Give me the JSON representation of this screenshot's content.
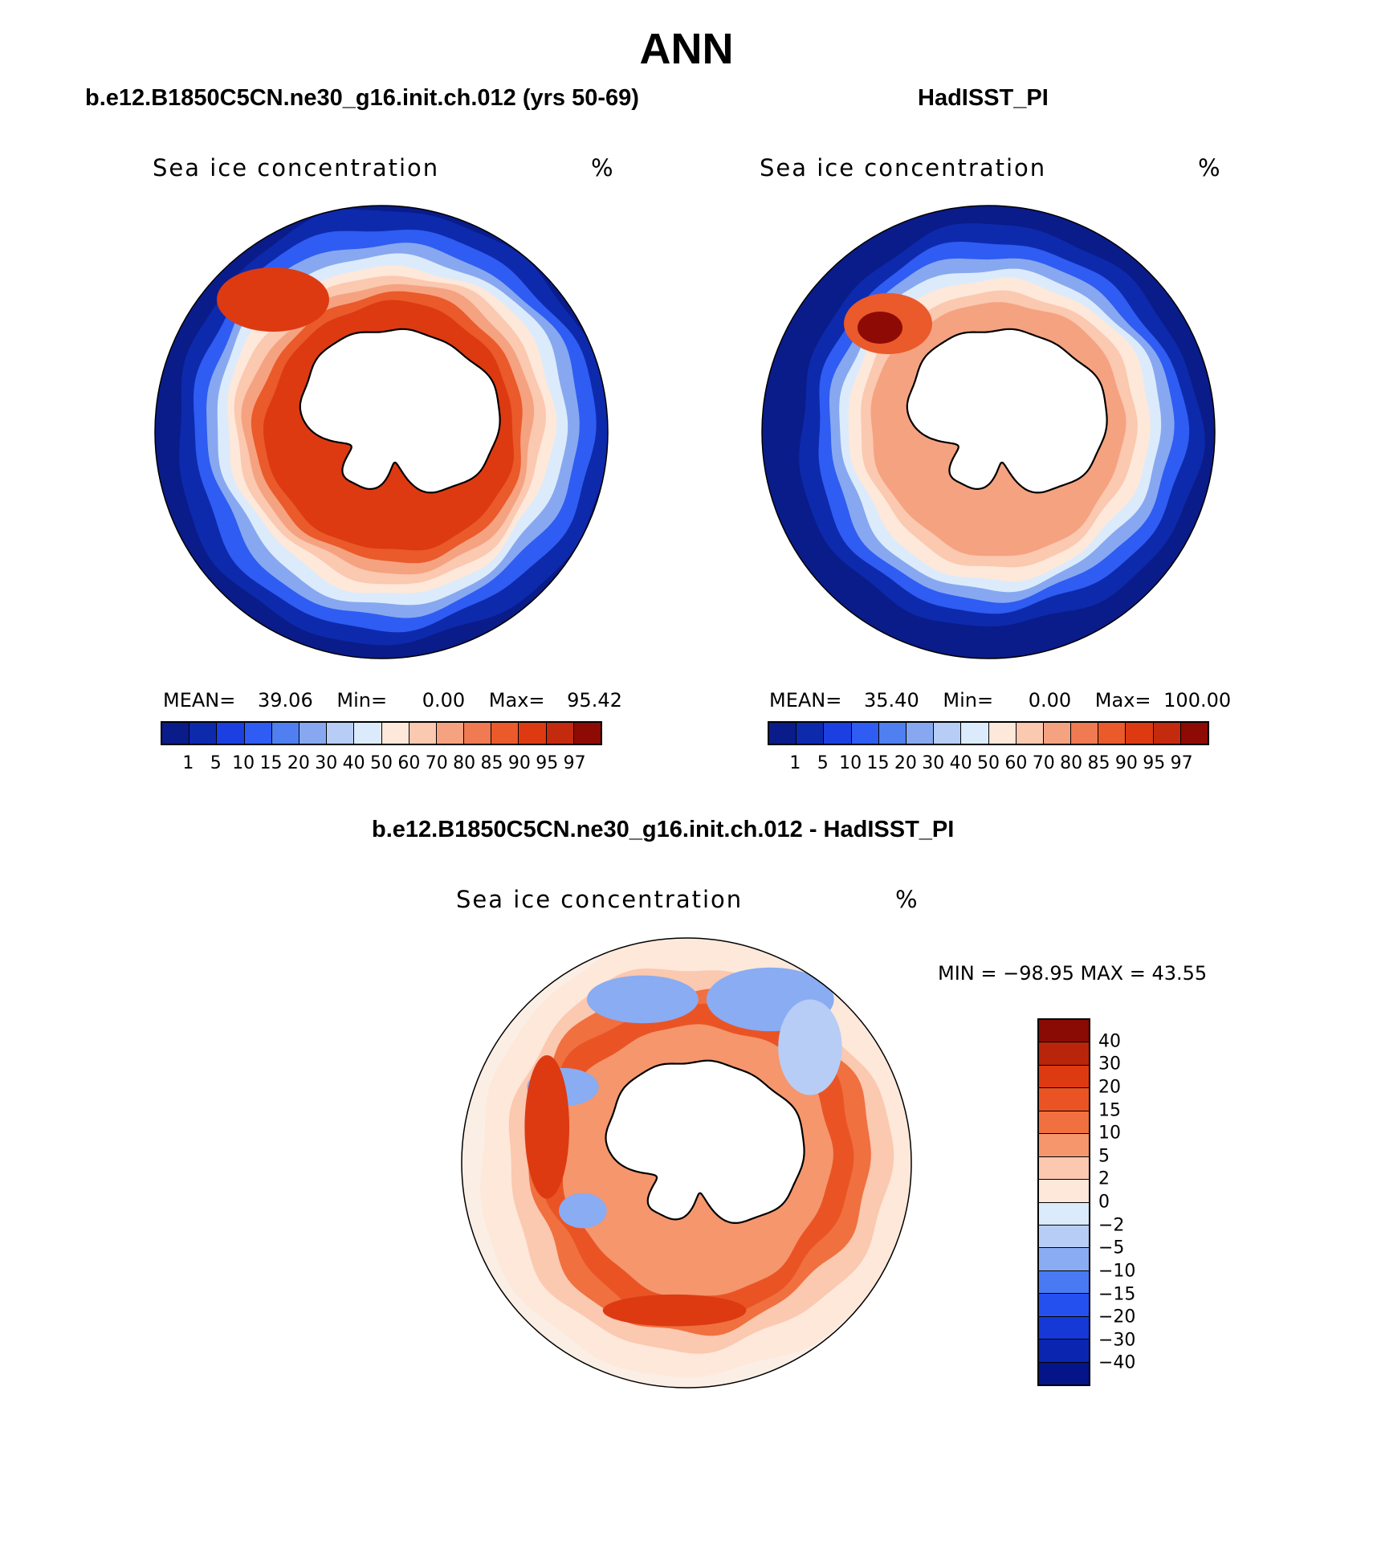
{
  "title": "ANN",
  "panels": {
    "left": {
      "title": "b.e12.B1850C5CN.ne30_g16.init.ch.012 (yrs 50-69)",
      "variable": "Sea ice concentration",
      "units": "%",
      "stats": {
        "mean_label": "MEAN=",
        "mean": "39.06",
        "min_label": "Min=",
        "min": "0.00",
        "max_label": "Max=",
        "max": "95.42"
      }
    },
    "right": {
      "title": "HadISST_PI",
      "variable": "Sea ice concentration",
      "units": "%",
      "stats": {
        "mean_label": "MEAN=",
        "mean": "35.40",
        "min_label": "Min=",
        "min": "0.00",
        "max_label": "Max=",
        "max": "100.00"
      }
    },
    "diff": {
      "title": "b.e12.B1850C5CN.ne30_g16.init.ch.012 - HadISST_PI",
      "variable": "Sea ice concentration",
      "units": "%",
      "minmax": "MIN = −98.95 MAX =   43.55"
    }
  },
  "colorbars": {
    "abs_levels": [
      "1",
      "5",
      "10",
      "15",
      "20",
      "30",
      "40",
      "50",
      "60",
      "70",
      "80",
      "85",
      "90",
      "95",
      "97"
    ],
    "abs_colors": [
      "#0a1c8a",
      "#0d2aad",
      "#1b3fe0",
      "#2f5cf2",
      "#4f7ff0",
      "#87a8f0",
      "#b7cdf6",
      "#dcebfb",
      "#fde8da",
      "#fbc8b0",
      "#f5a281",
      "#f07a52",
      "#ea5a2b",
      "#dd3a12",
      "#c42a0e",
      "#8e0a04"
    ],
    "diff_levels": [
      "−40",
      "−30",
      "−20",
      "−15",
      "−10",
      "−5",
      "−2",
      "0",
      "2",
      "5",
      "10",
      "15",
      "20",
      "30",
      "40"
    ],
    "diff_colors": [
      "#06148a",
      "#0a26b0",
      "#1538d6",
      "#2550f0",
      "#4a7af2",
      "#89acf3",
      "#b7cdf6",
      "#dcebfb",
      "#fde8da",
      "#fbc8b0",
      "#f5966d",
      "#f07040",
      "#ea5424",
      "#dd3a12",
      "#b8250a",
      "#8a0a04"
    ]
  }
}
